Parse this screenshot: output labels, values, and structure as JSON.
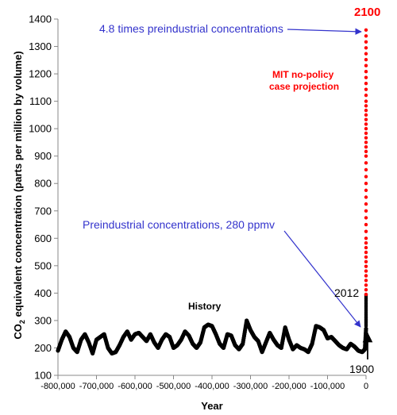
{
  "chart_data": {
    "type": "scatter",
    "title": "",
    "xlabel": "Year",
    "ylabel_main": "CO",
    "ylabel_sub": "2",
    "ylabel_rest": " equivalent concentration (parts per million by volume)",
    "xlim": [
      -800000,
      0
    ],
    "ylim": [
      100,
      1400
    ],
    "xticks": [
      {
        "value": -800000,
        "label": "-800,000"
      },
      {
        "value": -700000,
        "label": "-700,000"
      },
      {
        "value": -600000,
        "label": "-600,000"
      },
      {
        "value": -500000,
        "label": "-500,000"
      },
      {
        "value": -400000,
        "label": "-400,000"
      },
      {
        "value": -300000,
        "label": "-300,000"
      },
      {
        "value": -200000,
        "label": "-200,000"
      },
      {
        "value": -100000,
        "label": "-100,000"
      },
      {
        "value": 0,
        "label": "0"
      }
    ],
    "yticks": [
      {
        "value": 100,
        "label": "100"
      },
      {
        "value": 200,
        "label": "200"
      },
      {
        "value": 300,
        "label": "300"
      },
      {
        "value": 400,
        "label": "400"
      },
      {
        "value": 500,
        "label": "500"
      },
      {
        "value": 600,
        "label": "600"
      },
      {
        "value": 700,
        "label": "700"
      },
      {
        "value": 800,
        "label": "800"
      },
      {
        "value": 900,
        "label": "900"
      },
      {
        "value": 1000,
        "label": "1000"
      },
      {
        "value": 1100,
        "label": "1100"
      },
      {
        "value": 1200,
        "label": "1200"
      },
      {
        "value": 1300,
        "label": "1300"
      },
      {
        "value": 1400,
        "label": "1400"
      }
    ],
    "series": [
      {
        "color": "#000000",
        "x": [
          -800000,
          -790000,
          -780000,
          -770000,
          -760000,
          -750000,
          -740000,
          -730000,
          -720000,
          -710000,
          -700000,
          -690000,
          -680000,
          -670000,
          -660000,
          -650000,
          -640000,
          -630000,
          -620000,
          -610000,
          -600000,
          -590000,
          -580000,
          -570000,
          -560000,
          -550000,
          -540000,
          -530000,
          -520000,
          -510000,
          -500000,
          -490000,
          -480000,
          -470000,
          -460000,
          -450000,
          -440000,
          -430000,
          -420000,
          -410000,
          -400000,
          -390000,
          -380000,
          -370000,
          -360000,
          -350000,
          -340000,
          -330000,
          -320000,
          -310000,
          -300000,
          -290000,
          -280000,
          -270000,
          -260000,
          -250000,
          -240000,
          -230000,
          -220000,
          -210000,
          -200000,
          -190000,
          -180000,
          -170000,
          -160000,
          -150000,
          -140000,
          -130000,
          -120000,
          -110000,
          -100000,
          -90000,
          -80000,
          -70000,
          -60000,
          -50000,
          -40000,
          -30000,
          -20000,
          -10000,
          -3000,
          0
        ],
        "y": [
          190,
          230,
          260,
          240,
          200,
          185,
          230,
          250,
          220,
          180,
          230,
          240,
          250,
          200,
          180,
          185,
          210,
          240,
          260,
          230,
          250,
          255,
          240,
          225,
          250,
          220,
          200,
          230,
          250,
          240,
          200,
          210,
          230,
          260,
          245,
          215,
          200,
          220,
          275,
          285,
          280,
          250,
          215,
          200,
          250,
          245,
          210,
          195,
          215,
          300,
          265,
          240,
          225,
          185,
          220,
          255,
          230,
          210,
          200,
          275,
          230,
          195,
          210,
          200,
          195,
          185,
          215,
          280,
          275,
          265,
          235,
          240,
          225,
          210,
          200,
          195,
          215,
          205,
          190,
          185,
          195,
          270
        ]
      },
      {
        "color": "#000000",
        "x": [
          0,
          0,
          0
        ],
        "y": [
          280,
          330,
          395
        ]
      },
      {
        "color": "#ff0000",
        "x": [
          0,
          0,
          0,
          0,
          0
        ],
        "y": [
          395,
          600,
          900,
          1100,
          1360
        ]
      }
    ],
    "annotations": [
      {
        "text": "4.8 times preindustrial concentrations",
        "color": "#3333cc"
      },
      {
        "text": "Preindustrial concentrations, 280 ppmv",
        "color": "#3333cc"
      },
      {
        "text": "History",
        "color": "#000000"
      },
      {
        "text": "MIT no-policy",
        "color": "#ff0000"
      },
      {
        "text": "case projection",
        "color": "#ff0000"
      },
      {
        "text": "2100",
        "color": "#ff0000"
      },
      {
        "text": "2012",
        "color": "#000000"
      },
      {
        "text": "1900",
        "color": "#000000"
      }
    ]
  }
}
